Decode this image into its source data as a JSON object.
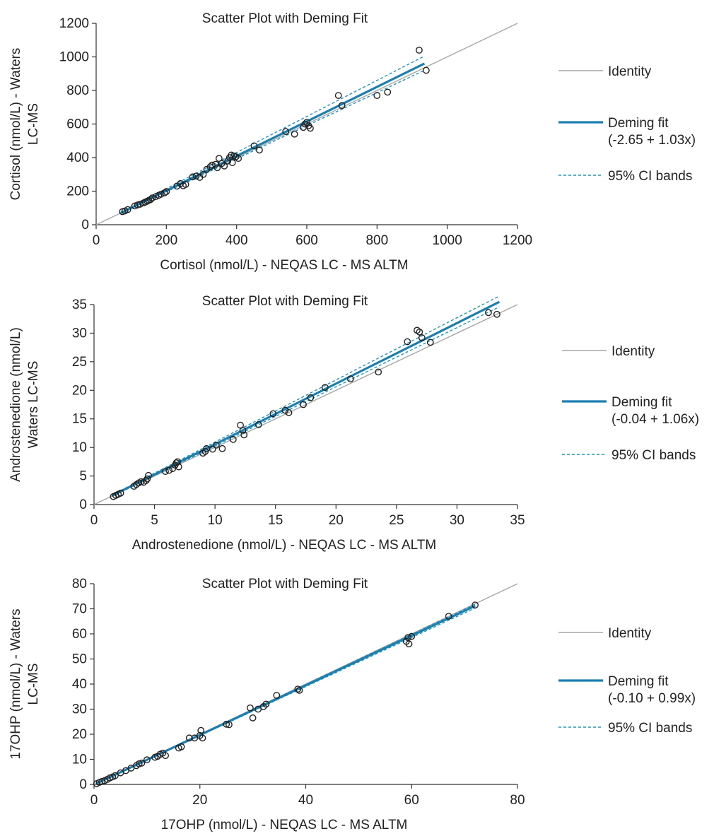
{
  "colors": {
    "identity": "#a6a6a6",
    "fit": "#1b7fb0",
    "ci": "#1b95c4",
    "points": "#222222",
    "axis": "#333333"
  },
  "chart_data": [
    {
      "type": "scatter",
      "title": "Scatter Plot with Deming Fit",
      "xlabel": "Cortisol (nmol/L)  - NEQAS LC - MS ALTM",
      "ylabel_lines": [
        "Cortisol (nmol/L)  - Waters",
        "LC-MS"
      ],
      "xlim": [
        0,
        1200
      ],
      "ylim": [
        0,
        1200
      ],
      "xticks": [
        0,
        200,
        400,
        600,
        800,
        1000,
        1200
      ],
      "yticks": [
        0,
        200,
        400,
        600,
        800,
        1000,
        1200
      ],
      "identity": {
        "from": 0,
        "to": 1200
      },
      "fit": {
        "intercept": -2.65,
        "slope": 1.03,
        "x_range": [
          70,
          935
        ]
      },
      "ci": {
        "lower_end": [
          935,
          920
        ],
        "upper_end": [
          935,
          1005
        ],
        "lower_start": [
          70,
          68
        ],
        "upper_start": [
          70,
          76
        ]
      },
      "legend": {
        "position": "right",
        "identity": "Identity",
        "fit_label": "Deming fit",
        "fit_equation": "(-2.65 + 1.03x)",
        "ci_label": "95% CI bands"
      },
      "points": [
        [
          75,
          78
        ],
        [
          82,
          82
        ],
        [
          90,
          90
        ],
        [
          110,
          112
        ],
        [
          118,
          118
        ],
        [
          125,
          122
        ],
        [
          135,
          130
        ],
        [
          140,
          135
        ],
        [
          145,
          140
        ],
        [
          150,
          145
        ],
        [
          155,
          150
        ],
        [
          160,
          160
        ],
        [
          170,
          168
        ],
        [
          178,
          175
        ],
        [
          185,
          182
        ],
        [
          195,
          190
        ],
        [
          200,
          198
        ],
        [
          230,
          230
        ],
        [
          240,
          245
        ],
        [
          248,
          232
        ],
        [
          255,
          240
        ],
        [
          275,
          285
        ],
        [
          285,
          290
        ],
        [
          295,
          282
        ],
        [
          305,
          300
        ],
        [
          315,
          330
        ],
        [
          325,
          345
        ],
        [
          330,
          355
        ],
        [
          340,
          360
        ],
        [
          345,
          340
        ],
        [
          350,
          395
        ],
        [
          358,
          365
        ],
        [
          365,
          350
        ],
        [
          375,
          380
        ],
        [
          380,
          400
        ],
        [
          385,
          415
        ],
        [
          388,
          370
        ],
        [
          392,
          410
        ],
        [
          398,
          405
        ],
        [
          405,
          395
        ],
        [
          450,
          470
        ],
        [
          465,
          445
        ],
        [
          540,
          555
        ],
        [
          565,
          540
        ],
        [
          590,
          580
        ],
        [
          595,
          600
        ],
        [
          600,
          610
        ],
        [
          605,
          590
        ],
        [
          610,
          575
        ],
        [
          690,
          770
        ],
        [
          700,
          710
        ],
        [
          800,
          770
        ],
        [
          830,
          790
        ],
        [
          920,
          1040
        ],
        [
          940,
          920
        ]
      ]
    },
    {
      "type": "scatter",
      "title": "Scatter Plot with Deming Fit",
      "xlabel": "Androstenedione  (nmol/L)  - NEQAS LC - MS ALTM",
      "ylabel_lines": [
        "Androstenedione (nmol/L)",
        "Waters LC-MS"
      ],
      "xlim": [
        0,
        35
      ],
      "ylim": [
        0,
        35
      ],
      "xticks": [
        0,
        5,
        10,
        15,
        20,
        25,
        30,
        35
      ],
      "yticks": [
        0,
        5,
        10,
        15,
        20,
        25,
        30,
        35
      ],
      "identity": {
        "from": 0,
        "to": 35
      },
      "fit": {
        "intercept": -0.04,
        "slope": 1.06,
        "x_range": [
          1.5,
          33.5
        ]
      },
      "ci": {
        "lower_end": [
          33.5,
          34.6
        ],
        "upper_end": [
          33.5,
          36.5
        ],
        "lower_start": [
          1.5,
          1.45
        ],
        "upper_start": [
          1.5,
          1.7
        ]
      },
      "legend": {
        "position": "right",
        "identity": "Identity",
        "fit_label": "Deming fit",
        "fit_equation": "(-0.04 + 1.06x)",
        "ci_label": "95% CI bands"
      },
      "points": [
        [
          1.6,
          1.4
        ],
        [
          1.8,
          1.6
        ],
        [
          2.0,
          1.8
        ],
        [
          2.2,
          2.0
        ],
        [
          3.3,
          3.2
        ],
        [
          3.5,
          3.5
        ],
        [
          3.7,
          3.8
        ],
        [
          3.9,
          4.0
        ],
        [
          4.1,
          3.9
        ],
        [
          4.3,
          4.2
        ],
        [
          4.4,
          4.5
        ],
        [
          4.5,
          5.1
        ],
        [
          5.9,
          5.8
        ],
        [
          6.2,
          6.0
        ],
        [
          6.5,
          6.3
        ],
        [
          6.7,
          6.9
        ],
        [
          6.8,
          7.3
        ],
        [
          6.9,
          7.5
        ],
        [
          7.0,
          6.6
        ],
        [
          9.0,
          9.0
        ],
        [
          9.2,
          9.3
        ],
        [
          9.3,
          9.8
        ],
        [
          9.8,
          9.7
        ],
        [
          10.1,
          10.4
        ],
        [
          10.6,
          9.8
        ],
        [
          11.5,
          11.4
        ],
        [
          12.1,
          13.9
        ],
        [
          12.3,
          13.0
        ],
        [
          12.4,
          12.2
        ],
        [
          13.6,
          14.0
        ],
        [
          14.8,
          15.9
        ],
        [
          15.8,
          16.5
        ],
        [
          16.1,
          16.1
        ],
        [
          17.3,
          17.5
        ],
        [
          17.9,
          18.7
        ],
        [
          19.1,
          20.5
        ],
        [
          21.2,
          22.0
        ],
        [
          23.5,
          23.2
        ],
        [
          25.9,
          28.5
        ],
        [
          26.7,
          30.5
        ],
        [
          26.9,
          30.2
        ],
        [
          27.1,
          29.2
        ],
        [
          27.8,
          28.4
        ],
        [
          32.6,
          33.6
        ],
        [
          33.3,
          33.3
        ]
      ]
    },
    {
      "type": "scatter",
      "title": "Scatter Plot with Deming Fit",
      "xlabel": "17OHP (nmol/L)  - NEQAS LC - MS ALTM",
      "ylabel_lines": [
        "17OHP (nmol/L)  - Waters",
        "LC-MS"
      ],
      "xlim": [
        0,
        80
      ],
      "ylim": [
        0,
        80
      ],
      "xticks": [
        0,
        20,
        40,
        60,
        80
      ],
      "yticks": [
        0,
        10,
        20,
        30,
        40,
        50,
        60,
        70,
        80
      ],
      "identity": {
        "from": 0,
        "to": 80
      },
      "fit": {
        "intercept": -0.1,
        "slope": 0.99,
        "x_range": [
          0.5,
          72
        ]
      },
      "ci": {
        "lower_end": [
          72,
          70.3
        ],
        "upper_end": [
          72,
          71.8
        ],
        "lower_start": [
          0.5,
          0.35
        ],
        "upper_start": [
          0.5,
          0.45
        ]
      },
      "legend": {
        "position": "right",
        "identity": "Identity",
        "fit_label": "Deming fit",
        "fit_equation": "(-0.10 + 0.99x)",
        "ci_label": "95% CI bands"
      },
      "points": [
        [
          0.5,
          0.3
        ],
        [
          1.0,
          0.8
        ],
        [
          1.5,
          1.2
        ],
        [
          2.0,
          1.5
        ],
        [
          2.5,
          2.0
        ],
        [
          3.0,
          2.6
        ],
        [
          3.5,
          3.0
        ],
        [
          4.0,
          3.5
        ],
        [
          5.0,
          4.6
        ],
        [
          6.0,
          5.5
        ],
        [
          7.0,
          6.5
        ],
        [
          8.0,
          7.5
        ],
        [
          8.5,
          8.2
        ],
        [
          9.0,
          8.5
        ],
        [
          10.0,
          9.8
        ],
        [
          11.5,
          10.8
        ],
        [
          12.0,
          11.2
        ],
        [
          12.5,
          12.0
        ],
        [
          13.0,
          12.5
        ],
        [
          13.5,
          11.5
        ],
        [
          16.0,
          14.5
        ],
        [
          16.5,
          15.0
        ],
        [
          18.0,
          18.5
        ],
        [
          19.0,
          18.5
        ],
        [
          20.0,
          19.5
        ],
        [
          20.2,
          21.5
        ],
        [
          20.5,
          18.5
        ],
        [
          25.0,
          24.0
        ],
        [
          25.5,
          23.8
        ],
        [
          29.5,
          30.5
        ],
        [
          30.0,
          26.5
        ],
        [
          31.0,
          30.0
        ],
        [
          32.0,
          31.0
        ],
        [
          32.5,
          32.0
        ],
        [
          34.5,
          35.5
        ],
        [
          38.5,
          38.0
        ],
        [
          38.8,
          37.5
        ],
        [
          59.0,
          57.0
        ],
        [
          59.3,
          58.5
        ],
        [
          59.5,
          56.0
        ],
        [
          60.0,
          59.0
        ],
        [
          67.0,
          67.0
        ],
        [
          72.0,
          71.5
        ]
      ]
    }
  ]
}
